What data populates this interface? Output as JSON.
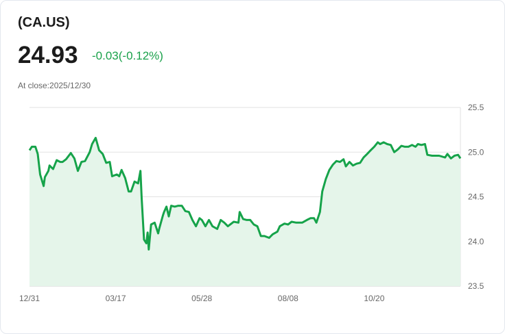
{
  "header": {
    "ticker": "(CA.US)",
    "price": "24.93",
    "change": "-0.03(-0.12%)",
    "close_label": "At close:2025/12/30"
  },
  "colors": {
    "line": "#16a34a",
    "fill": "#e5f5ea",
    "change": "#1aa14a",
    "grid": "#e2e2e2"
  },
  "chart_data": {
    "type": "area",
    "title": "",
    "xlabel": "",
    "ylabel": "",
    "ylim": [
      23.5,
      25.5
    ],
    "xlim": [
      0,
      365
    ],
    "y_ticks": [
      "25.5",
      "25.0",
      "24.5",
      "24.0",
      "23.5"
    ],
    "y_tick_values": [
      25.5,
      25.0,
      24.5,
      24.0,
      23.5
    ],
    "x_ticks": [
      "12/31",
      "03/17",
      "05/28",
      "08/08",
      "10/20"
    ],
    "x_tick_values": [
      0,
      73,
      146,
      219,
      292
    ],
    "grid": true,
    "x": [
      0,
      2,
      5,
      7,
      9,
      12,
      13,
      16,
      17,
      20,
      23,
      26,
      28,
      31,
      35,
      38,
      41,
      44,
      47,
      51,
      53,
      56,
      59,
      62,
      65,
      68,
      70,
      74,
      76,
      78,
      81,
      84,
      86,
      89,
      92,
      94,
      95,
      97,
      99,
      100,
      101,
      103,
      106,
      109,
      110,
      113,
      114,
      116,
      118,
      120,
      123,
      126,
      129,
      132,
      135,
      138,
      141,
      144,
      146,
      149,
      152,
      155,
      159,
      162,
      165,
      168,
      173,
      177,
      178,
      181,
      184,
      187,
      190,
      193,
      196,
      199,
      203,
      206,
      210,
      212,
      216,
      219,
      222,
      226,
      231,
      235,
      238,
      241,
      243,
      246,
      248,
      251,
      254,
      257,
      260,
      263,
      266,
      268,
      271,
      274,
      277,
      280,
      283,
      286,
      289,
      292,
      295,
      297,
      300,
      303,
      306,
      309,
      312,
      315,
      318,
      321,
      324,
      327,
      329,
      332,
      335,
      337,
      341,
      347,
      352,
      354,
      357,
      360,
      363,
      365
    ],
    "values": [
      25.02,
      25.06,
      25.06,
      24.98,
      24.75,
      24.62,
      24.72,
      24.79,
      24.85,
      24.81,
      24.91,
      24.89,
      24.89,
      24.92,
      24.99,
      24.93,
      24.79,
      24.89,
      24.9,
      25.0,
      25.09,
      25.16,
      25.02,
      24.98,
      24.88,
      24.89,
      24.73,
      24.75,
      24.73,
      24.8,
      24.71,
      24.56,
      24.56,
      24.67,
      24.65,
      24.79,
      24.48,
      24.02,
      23.98,
      24.1,
      23.91,
      24.19,
      24.21,
      24.09,
      24.15,
      24.29,
      24.33,
      24.39,
      24.28,
      24.4,
      24.39,
      24.4,
      24.4,
      24.34,
      24.33,
      24.24,
      24.17,
      24.26,
      24.24,
      24.17,
      24.24,
      24.17,
      24.14,
      24.24,
      24.21,
      24.17,
      24.22,
      24.21,
      24.33,
      24.25,
      24.24,
      24.24,
      24.19,
      24.17,
      24.06,
      24.06,
      24.04,
      24.08,
      24.11,
      24.17,
      24.2,
      24.19,
      24.22,
      24.21,
      24.21,
      24.24,
      24.26,
      24.26,
      24.21,
      24.33,
      24.56,
      24.7,
      24.8,
      24.86,
      24.9,
      24.89,
      24.92,
      24.84,
      24.89,
      24.85,
      24.87,
      24.88,
      24.94,
      24.98,
      25.02,
      25.06,
      25.11,
      25.09,
      25.11,
      25.09,
      25.08,
      25.0,
      25.03,
      25.07,
      25.06,
      25.06,
      25.08,
      25.06,
      25.09,
      25.08,
      25.09,
      24.97,
      24.96,
      24.96,
      24.94,
      24.98,
      24.93,
      24.96,
      24.97,
      24.93
    ]
  }
}
